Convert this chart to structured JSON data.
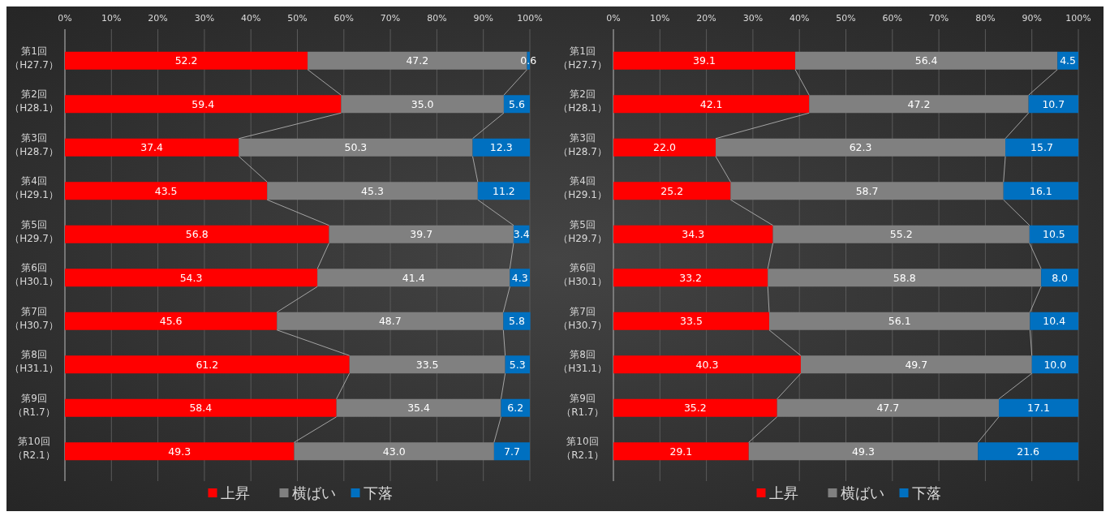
{
  "chart_data": [
    {
      "type": "bar",
      "orientation": "horizontal",
      "stacked": true,
      "categories": [
        "第1回（H27.7）",
        "第2回（H28.1）",
        "第3回（H28.7）",
        "第4回（H29.1）",
        "第5回（H29.7）",
        "第6回（H30.1）",
        "第7回（H30.7）",
        "第8回（H31.1）",
        "第9回（R1.7）",
        "第10回（R2.1）"
      ],
      "series": [
        {
          "name": "上昇",
          "color": "#ff0000",
          "values": [
            52.2,
            59.4,
            37.4,
            43.5,
            56.8,
            54.3,
            45.6,
            61.2,
            58.4,
            49.3
          ],
          "value_labels": [
            "52.2",
            "59.4",
            "37.4",
            "43.5",
            "56.8",
            "54.3",
            "45.6",
            "61.2",
            "58.4",
            "49.3"
          ]
        },
        {
          "name": "横ばい",
          "color": "#808080",
          "values": [
            47.2,
            35.0,
            50.3,
            45.3,
            39.7,
            41.4,
            48.7,
            33.5,
            35.4,
            43.0
          ],
          "value_labels": [
            "47.2",
            "35.0",
            "50.3",
            "45.3",
            "39.7",
            "41.4",
            "48.7",
            "33.5",
            "35.4",
            "43.0"
          ]
        },
        {
          "name": "下落",
          "color": "#0070c0",
          "values": [
            0.6,
            5.6,
            12.3,
            11.2,
            3.4,
            4.3,
            5.8,
            5.3,
            6.2,
            7.7
          ],
          "value_labels": [
            "0.6",
            "5.6",
            "12.3",
            "11.2",
            "3.4",
            "4.3",
            "5.8",
            "5.3",
            "6.2",
            "7.7"
          ]
        }
      ],
      "xlim": [
        0,
        100
      ],
      "xticks": [
        {
          "value": 0,
          "label": "0%"
        },
        {
          "value": 10,
          "label": "10%"
        },
        {
          "value": 20,
          "label": "20%"
        },
        {
          "value": 30,
          "label": "30%"
        },
        {
          "value": 40,
          "label": "40%"
        },
        {
          "value": 50,
          "label": "50%"
        },
        {
          "value": 60,
          "label": "60%"
        },
        {
          "value": 70,
          "label": "70%"
        },
        {
          "value": 80,
          "label": "80%"
        },
        {
          "value": 90,
          "label": "90%"
        },
        {
          "value": 100,
          "label": "100%"
        }
      ],
      "grid": "x",
      "legend": "bottom"
    },
    {
      "type": "bar",
      "orientation": "horizontal",
      "stacked": true,
      "categories": [
        "第1回（H27.7）",
        "第2回（H28.1）",
        "第3回（H28.7）",
        "第4回（H29.1）",
        "第5回（H29.7）",
        "第6回（H30.1）",
        "第7回（H30.7）",
        "第8回（H31.1）",
        "第9回（R1.7）",
        "第10回（R2.1）"
      ],
      "series": [
        {
          "name": "上昇",
          "color": "#ff0000",
          "values": [
            39.1,
            42.1,
            22.0,
            25.2,
            34.3,
            33.2,
            33.5,
            40.3,
            35.2,
            29.1
          ],
          "value_labels": [
            "39.1",
            "42.1",
            "22.0",
            "25.2",
            "34.3",
            "33.2",
            "33.5",
            "40.3",
            "35.2",
            "29.1"
          ]
        },
        {
          "name": "横ばい",
          "color": "#808080",
          "values": [
            56.4,
            47.2,
            62.3,
            58.7,
            55.2,
            58.8,
            56.1,
            49.7,
            47.7,
            49.3
          ],
          "value_labels": [
            "56.4",
            "47.2",
            "62.3",
            "58.7",
            "55.2",
            "58.8",
            "56.1",
            "49.7",
            "47.7",
            "49.3"
          ]
        },
        {
          "name": "下落",
          "color": "#0070c0",
          "values": [
            4.5,
            10.7,
            15.7,
            16.1,
            10.5,
            8.0,
            10.4,
            10.0,
            17.1,
            21.6
          ],
          "value_labels": [
            "4.5",
            "10.7",
            "15.7",
            "16.1",
            "10.5",
            "8.0",
            "10.4",
            "10.0",
            "17.1",
            "21.6"
          ]
        }
      ],
      "xlim": [
        0,
        100
      ],
      "xticks": [
        {
          "value": 0,
          "label": "0%"
        },
        {
          "value": 10,
          "label": "10%"
        },
        {
          "value": 20,
          "label": "20%"
        },
        {
          "value": 30,
          "label": "30%"
        },
        {
          "value": 40,
          "label": "40%"
        },
        {
          "value": 50,
          "label": "50%"
        },
        {
          "value": 60,
          "label": "60%"
        },
        {
          "value": 70,
          "label": "70%"
        },
        {
          "value": 80,
          "label": "80%"
        },
        {
          "value": 90,
          "label": "90%"
        },
        {
          "value": 100,
          "label": "100%"
        }
      ],
      "grid": "x",
      "legend": "bottom"
    }
  ]
}
